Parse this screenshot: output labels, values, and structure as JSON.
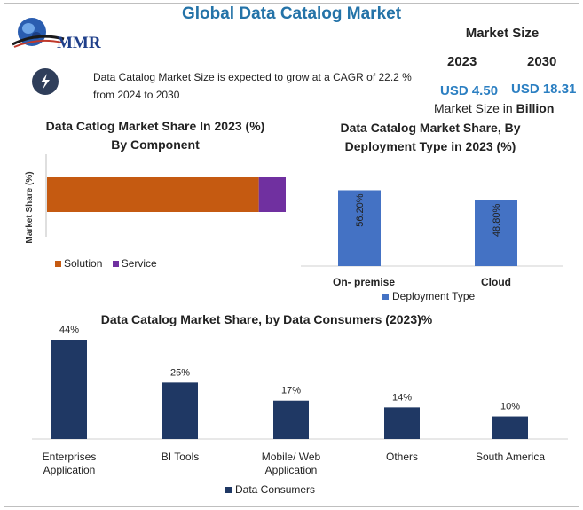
{
  "header": {
    "title": "Global Data Catalog Market",
    "logo_text": "MMR",
    "market_size_label": "Market Size",
    "year_2023": "2023",
    "year_2030": "2030",
    "value_2023": "USD 4.50",
    "value_2030": "USD 18.31",
    "unit_prefix": "Market Size in ",
    "unit_bold": "Billion",
    "description": "Data Catalog Market Size is expected to grow at a CAGR of 22.2 % from 2024 to 2030"
  },
  "colors": {
    "title": "#2473a8",
    "solution": "#c55a11",
    "service": "#7030a0",
    "deployment": "#4472c4",
    "consumers": "#1f3864",
    "usd": "#2b7fc2"
  },
  "chart_data": [
    {
      "type": "bar",
      "orientation": "horizontal-stacked",
      "title": "Data Catlog Market Share In 2023 (%) By Component",
      "title_line1": "Data Catlog Market Share In 2023 (%)",
      "title_line2": "By Component",
      "ylabel": "Market Share (%)",
      "series": [
        {
          "name": "Solution",
          "values": [
            77
          ]
        },
        {
          "name": "Service",
          "values": [
            15
          ]
        }
      ],
      "xlim": [
        0,
        100
      ],
      "legend": "bottom-left"
    },
    {
      "type": "bar",
      "title": "Data Catalog Market Share, By Deployment Type in 2023 (%)",
      "title_line1": "Data Catalog Market Share, By",
      "title_line2": "Deployment Type in 2023 (%)",
      "categories": [
        "On- premise",
        "Cloud"
      ],
      "series": [
        {
          "name": "Deployment Type",
          "values": [
            56.2,
            48.8
          ]
        }
      ],
      "data_labels": [
        "56.20%",
        "48.80%"
      ],
      "ylim": [
        0,
        60
      ],
      "legend": "bottom-center"
    },
    {
      "type": "bar",
      "title": "Data Catalog Market Share, by Data Consumers (2023)%",
      "categories": [
        [
          "Enterprises",
          "Application"
        ],
        [
          "BI Tools"
        ],
        [
          "Mobile/ Web",
          "Application"
        ],
        [
          "Others"
        ],
        [
          "South America"
        ]
      ],
      "series": [
        {
          "name": "Data Consumers",
          "values": [
            44,
            25,
            17,
            14,
            10
          ]
        }
      ],
      "data_labels": [
        "44%",
        "25%",
        "17%",
        "14%",
        "10%"
      ],
      "ylim": [
        0,
        44
      ],
      "legend": "bottom-left"
    }
  ]
}
